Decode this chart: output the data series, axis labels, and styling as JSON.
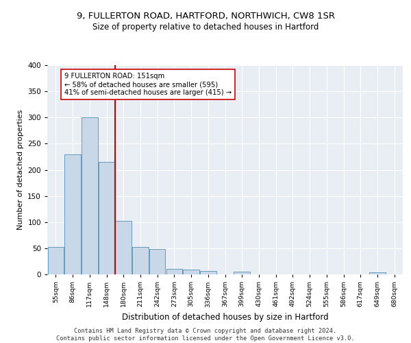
{
  "title1": "9, FULLERTON ROAD, HARTFORD, NORTHWICH, CW8 1SR",
  "title2": "Size of property relative to detached houses in Hartford",
  "xlabel": "Distribution of detached houses by size in Hartford",
  "ylabel": "Number of detached properties",
  "footer": "Contains HM Land Registry data © Crown copyright and database right 2024.\nContains public sector information licensed under the Open Government Licence v3.0.",
  "bin_labels": [
    "55sqm",
    "86sqm",
    "117sqm",
    "148sqm",
    "180sqm",
    "211sqm",
    "242sqm",
    "273sqm",
    "305sqm",
    "336sqm",
    "367sqm",
    "399sqm",
    "430sqm",
    "461sqm",
    "492sqm",
    "524sqm",
    "555sqm",
    "586sqm",
    "617sqm",
    "649sqm",
    "680sqm"
  ],
  "bar_values": [
    52,
    230,
    300,
    215,
    102,
    52,
    48,
    10,
    9,
    6,
    0,
    5,
    0,
    0,
    0,
    0,
    0,
    0,
    0,
    4,
    0
  ],
  "bar_color": "#c8d8e8",
  "bar_edge_color": "#6699bb",
  "background_color": "#e8eef4",
  "grid_color": "#ffffff",
  "red_line_bin": 3,
  "red_line_color": "#cc0000",
  "annotation_text": "9 FULLERTON ROAD: 151sqm\n← 58% of detached houses are smaller (595)\n41% of semi-detached houses are larger (415) →",
  "annotation_box_color": "#ffffff",
  "annotation_box_edge": "#cc0000",
  "ylim": [
    0,
    400
  ],
  "yticks": [
    0,
    50,
    100,
    150,
    200,
    250,
    300,
    350,
    400
  ]
}
